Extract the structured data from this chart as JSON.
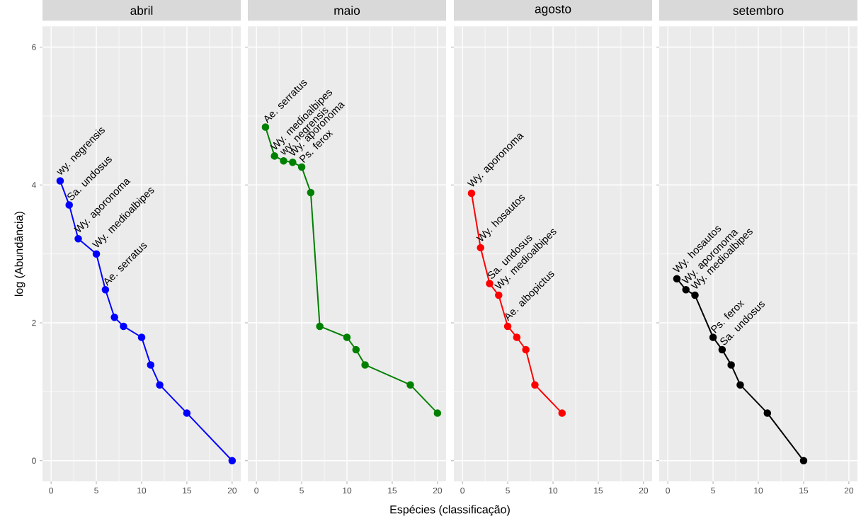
{
  "chart_data": [
    {
      "type": "line",
      "title": "abril",
      "ylabel": "log (Abundância)",
      "color": "#0000ff",
      "marker": "circle",
      "grid": true,
      "x": [
        1,
        2,
        3,
        5,
        6,
        7,
        8,
        10,
        11,
        12,
        15,
        20
      ],
      "values": [
        4.06,
        3.71,
        3.22,
        3.0,
        2.48,
        2.08,
        1.95,
        1.79,
        1.39,
        1.1,
        0.69,
        0
      ],
      "xlim": [
        -0.95,
        20.95
      ],
      "ylim": [
        -0.3,
        6.3
      ],
      "xticks": [
        0,
        5,
        10,
        15,
        20
      ],
      "yticks": [
        0,
        2,
        4,
        6
      ],
      "annotations": [
        {
          "text": "wy. negrensis",
          "x": 1,
          "y": 4.06
        },
        {
          "text": "Sa. undosus",
          "x": 2,
          "y": 3.71
        },
        {
          "text": "Wy. aporonoma",
          "x": 3,
          "y": 3.22
        },
        {
          "text": "Wy. medioalbipes",
          "x": 5,
          "y": 3.0
        },
        {
          "text": "Ae. serratus",
          "x": 6,
          "y": 2.48
        }
      ]
    },
    {
      "type": "line",
      "title": "maio",
      "xlabel": "Espécies (classificação)",
      "color": "#008000",
      "marker": "circle",
      "grid": true,
      "tick_labels": "x",
      "x": [
        1,
        2,
        3,
        4,
        5,
        6,
        7,
        10,
        11,
        12,
        17,
        20
      ],
      "values": [
        4.84,
        4.42,
        4.35,
        4.33,
        4.26,
        3.89,
        1.95,
        1.79,
        1.61,
        1.39,
        1.1,
        0.69
      ],
      "xlim": [
        -0.95,
        20.95
      ],
      "ylim": [
        -0.3,
        6.3
      ],
      "xticks": [
        0,
        5,
        10,
        15,
        20
      ],
      "yticks": [
        0,
        2,
        4,
        6
      ],
      "annotations": [
        {
          "text": "Ae. serratus",
          "x": 1,
          "y": 4.84
        },
        {
          "text": "Wy. medioalbipes",
          "x": 2,
          "y": 4.42
        },
        {
          "text": "wy. negrensis",
          "x": 3,
          "y": 4.35
        },
        {
          "text": "Wy. aporonoma",
          "x": 4,
          "y": 4.33
        },
        {
          "text": "Ps. ferox",
          "x": 5,
          "y": 4.26
        }
      ]
    },
    {
      "type": "line",
      "title": "agosto",
      "color": "#ff0000",
      "marker": "circle",
      "grid": true,
      "tick_labels": "x",
      "x": [
        1,
        2,
        3,
        4,
        5,
        6,
        7,
        8,
        11
      ],
      "values": [
        3.88,
        3.09,
        2.57,
        2.4,
        1.95,
        1.79,
        1.61,
        1.1,
        0.69
      ],
      "xlim": [
        -0.95,
        20.95
      ],
      "ylim": [
        -0.3,
        6.3
      ],
      "xticks": [
        0,
        5,
        10,
        15,
        20
      ],
      "yticks": [
        0,
        2,
        4,
        6
      ],
      "annotations": [
        {
          "text": "Wy. aporonoma",
          "x": 1,
          "y": 3.88
        },
        {
          "text": "Wy. hosautos",
          "x": 2,
          "y": 3.09
        },
        {
          "text": "Sa. undosus",
          "x": 3,
          "y": 2.57
        },
        {
          "text": "Wy. medioalbipes",
          "x": 4,
          "y": 2.4
        },
        {
          "text": "Ae. albopictus",
          "x": 5,
          "y": 1.95
        }
      ]
    },
    {
      "type": "line",
      "title": "setembro",
      "color": "#000000",
      "marker": "circle",
      "grid": true,
      "tick_labels": "x",
      "x": [
        1,
        2,
        3,
        5,
        6,
        7,
        8,
        11,
        15
      ],
      "values": [
        2.64,
        2.48,
        2.4,
        1.79,
        1.61,
        1.39,
        1.1,
        0.69,
        0
      ],
      "xlim": [
        -0.95,
        20.95
      ],
      "ylim": [
        -0.3,
        6.3
      ],
      "xticks": [
        0,
        5,
        10,
        15,
        20
      ],
      "yticks": [
        0,
        2,
        4,
        6
      ],
      "annotations": [
        {
          "text": "Wy. hosautos",
          "x": 1,
          "y": 2.64
        },
        {
          "text": "Wy. aporonoma",
          "x": 2,
          "y": 2.48
        },
        {
          "text": "Wy. medioalbipes",
          "x": 3,
          "y": 2.4
        },
        {
          "text": "Ps. ferox",
          "x": 5,
          "y": 1.79
        },
        {
          "text": "Sa. undosus",
          "x": 6,
          "y": 1.61
        }
      ]
    }
  ]
}
